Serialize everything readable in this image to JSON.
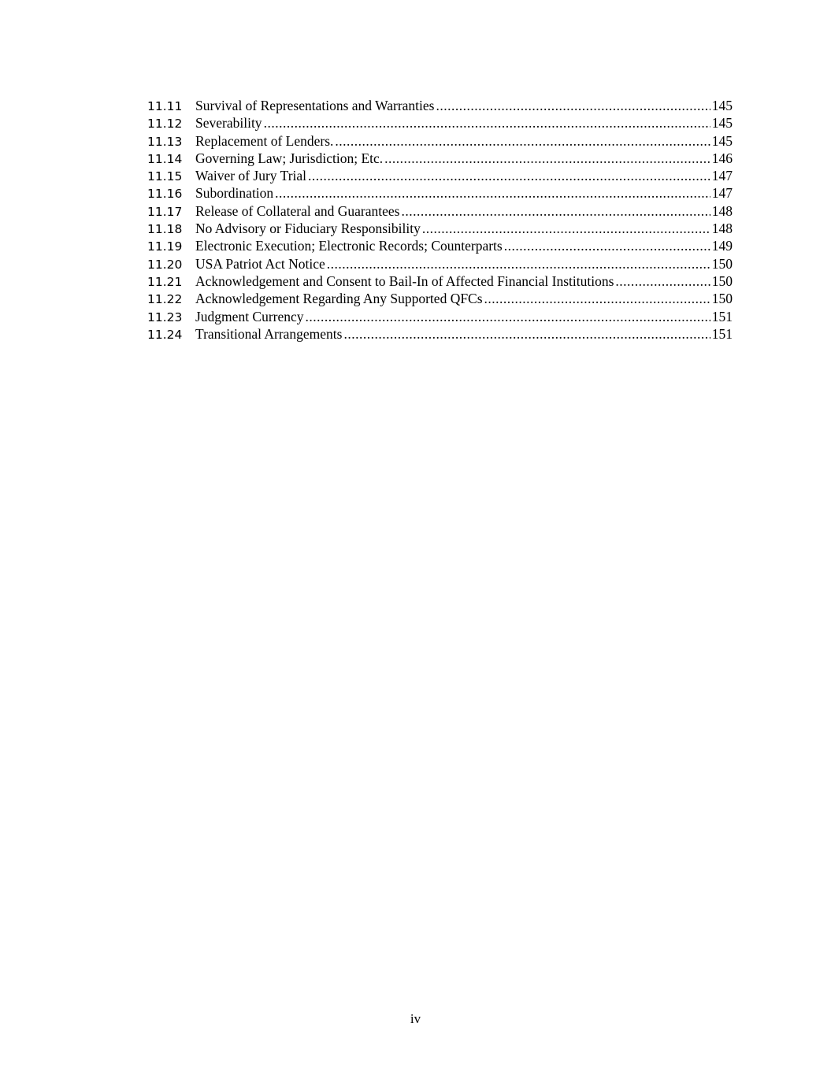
{
  "toc": [
    {
      "num": "11.11",
      "title": "Survival of Representations and Warranties",
      "page": "145"
    },
    {
      "num": "11.12",
      "title": "Severability",
      "page": "145"
    },
    {
      "num": "11.13",
      "title": "Replacement of Lenders.",
      "page": "145"
    },
    {
      "num": "11.14",
      "title": "Governing Law; Jurisdiction; Etc.",
      "page": "146"
    },
    {
      "num": "11.15",
      "title": "Waiver of Jury Trial",
      "page": "147"
    },
    {
      "num": "11.16",
      "title": "Subordination",
      "page": "147"
    },
    {
      "num": "11.17",
      "title": "Release of Collateral and Guarantees",
      "page": "148"
    },
    {
      "num": "11.18",
      "title": "No Advisory or Fiduciary Responsibility",
      "page": "148"
    },
    {
      "num": "11.19",
      "title": "Electronic Execution; Electronic Records; Counterparts",
      "page": "149"
    },
    {
      "num": "11.20",
      "title": "USA Patriot Act Notice",
      "page": "150"
    },
    {
      "num": "11.21",
      "title": "Acknowledgement and Consent to Bail-In of Affected Financial Institutions",
      "page": "150"
    },
    {
      "num": "11.22",
      "title": "Acknowledgement Regarding Any Supported QFCs",
      "page": "150"
    },
    {
      "num": "11.23",
      "title": "Judgment Currency",
      "page": "151"
    },
    {
      "num": "11.24",
      "title": "Transitional Arrangements",
      "page": "151"
    }
  ],
  "footer": {
    "page_number": "iv"
  }
}
